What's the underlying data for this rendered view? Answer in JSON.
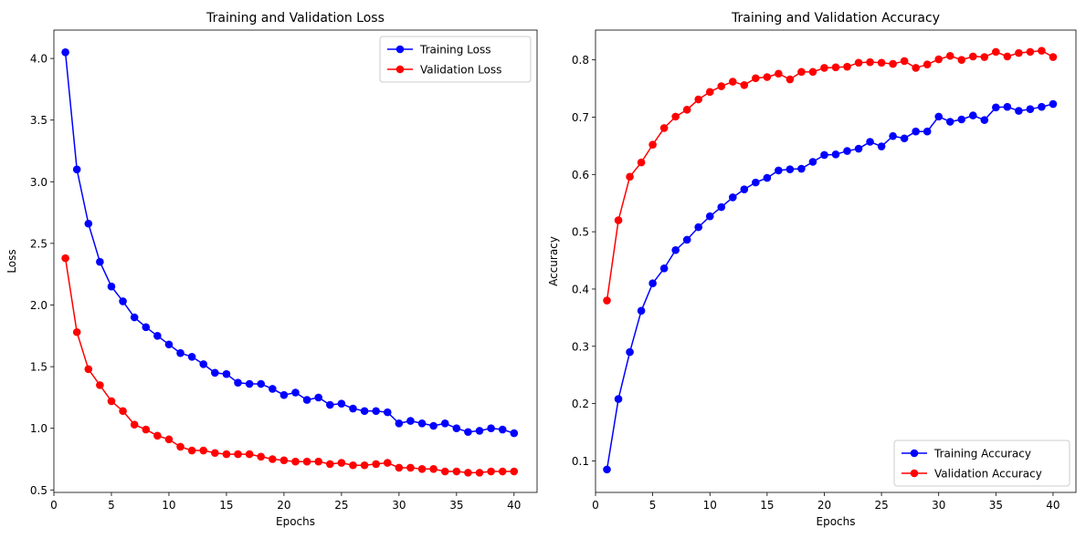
{
  "chart_data": [
    {
      "type": "line",
      "title": "Training and Validation Loss",
      "xlabel": "Epochs",
      "ylabel": "Loss",
      "xlim": [
        0,
        42
      ],
      "ylim": [
        0.48,
        4.23
      ],
      "x": [
        1,
        2,
        3,
        4,
        5,
        6,
        7,
        8,
        9,
        10,
        11,
        12,
        13,
        14,
        15,
        16,
        17,
        18,
        19,
        20,
        21,
        22,
        23,
        24,
        25,
        26,
        27,
        28,
        29,
        30,
        31,
        32,
        33,
        34,
        35,
        36,
        37,
        38,
        39,
        40
      ],
      "xticks": [
        0,
        5,
        10,
        15,
        20,
        25,
        30,
        35,
        40
      ],
      "yticks": [
        0.5,
        1.0,
        1.5,
        2.0,
        2.5,
        3.0,
        3.5,
        4.0
      ],
      "xtick_labels": [
        "0",
        "5",
        "10",
        "15",
        "20",
        "25",
        "30",
        "35",
        "40"
      ],
      "ytick_labels": [
        "0.5",
        "1.0",
        "1.5",
        "2.0",
        "2.5",
        "3.0",
        "3.5",
        "4.0"
      ],
      "legend_position": "upper right",
      "series": [
        {
          "name": "Training Loss",
          "color": "#0000ff",
          "values": [
            4.05,
            3.1,
            2.66,
            2.35,
            2.15,
            2.03,
            1.9,
            1.82,
            1.75,
            1.68,
            1.61,
            1.58,
            1.52,
            1.45,
            1.44,
            1.37,
            1.36,
            1.36,
            1.32,
            1.27,
            1.29,
            1.23,
            1.25,
            1.19,
            1.2,
            1.16,
            1.14,
            1.14,
            1.13,
            1.04,
            1.06,
            1.04,
            1.02,
            1.04,
            1.0,
            0.97,
            0.98,
            1.0,
            0.99,
            0.96
          ]
        },
        {
          "name": "Validation Loss",
          "color": "#ff0000",
          "values": [
            2.38,
            1.78,
            1.48,
            1.35,
            1.22,
            1.14,
            1.03,
            0.99,
            0.94,
            0.91,
            0.85,
            0.82,
            0.82,
            0.8,
            0.79,
            0.79,
            0.79,
            0.77,
            0.75,
            0.74,
            0.73,
            0.73,
            0.73,
            0.71,
            0.72,
            0.7,
            0.7,
            0.71,
            0.72,
            0.68,
            0.68,
            0.67,
            0.67,
            0.65,
            0.65,
            0.64,
            0.64,
            0.65,
            0.65,
            0.65
          ]
        }
      ]
    },
    {
      "type": "line",
      "title": "Training and Validation Accuracy",
      "xlabel": "Epochs",
      "ylabel": "Accuracy",
      "xlim": [
        0,
        42
      ],
      "ylim": [
        0.045,
        0.852
      ],
      "x": [
        1,
        2,
        3,
        4,
        5,
        6,
        7,
        8,
        9,
        10,
        11,
        12,
        13,
        14,
        15,
        16,
        17,
        18,
        19,
        20,
        21,
        22,
        23,
        24,
        25,
        26,
        27,
        28,
        29,
        30,
        31,
        32,
        33,
        34,
        35,
        36,
        37,
        38,
        39,
        40
      ],
      "xticks": [
        0,
        5,
        10,
        15,
        20,
        25,
        30,
        35,
        40
      ],
      "yticks": [
        0.1,
        0.2,
        0.3,
        0.4,
        0.5,
        0.6,
        0.7,
        0.8
      ],
      "xtick_labels": [
        "0",
        "5",
        "10",
        "15",
        "20",
        "25",
        "30",
        "35",
        "40"
      ],
      "ytick_labels": [
        "0.1",
        "0.2",
        "0.3",
        "0.4",
        "0.5",
        "0.6",
        "0.7",
        "0.8"
      ],
      "legend_position": "lower right",
      "series": [
        {
          "name": "Training Accuracy",
          "color": "#0000ff",
          "values": [
            0.085,
            0.208,
            0.29,
            0.362,
            0.41,
            0.436,
            0.468,
            0.486,
            0.508,
            0.527,
            0.543,
            0.56,
            0.574,
            0.586,
            0.594,
            0.607,
            0.609,
            0.61,
            0.622,
            0.634,
            0.635,
            0.641,
            0.645,
            0.657,
            0.649,
            0.667,
            0.663,
            0.675,
            0.675,
            0.701,
            0.692,
            0.696,
            0.703,
            0.695,
            0.717,
            0.718,
            0.711,
            0.714,
            0.718,
            0.723
          ]
        },
        {
          "name": "Validation Accuracy",
          "color": "#ff0000",
          "values": [
            0.38,
            0.52,
            0.596,
            0.621,
            0.652,
            0.681,
            0.701,
            0.713,
            0.731,
            0.744,
            0.754,
            0.762,
            0.756,
            0.768,
            0.77,
            0.776,
            0.766,
            0.779,
            0.779,
            0.786,
            0.787,
            0.788,
            0.795,
            0.796,
            0.795,
            0.793,
            0.798,
            0.786,
            0.792,
            0.801,
            0.807,
            0.8,
            0.806,
            0.805,
            0.814,
            0.806,
            0.812,
            0.814,
            0.816,
            0.805
          ]
        }
      ]
    }
  ]
}
